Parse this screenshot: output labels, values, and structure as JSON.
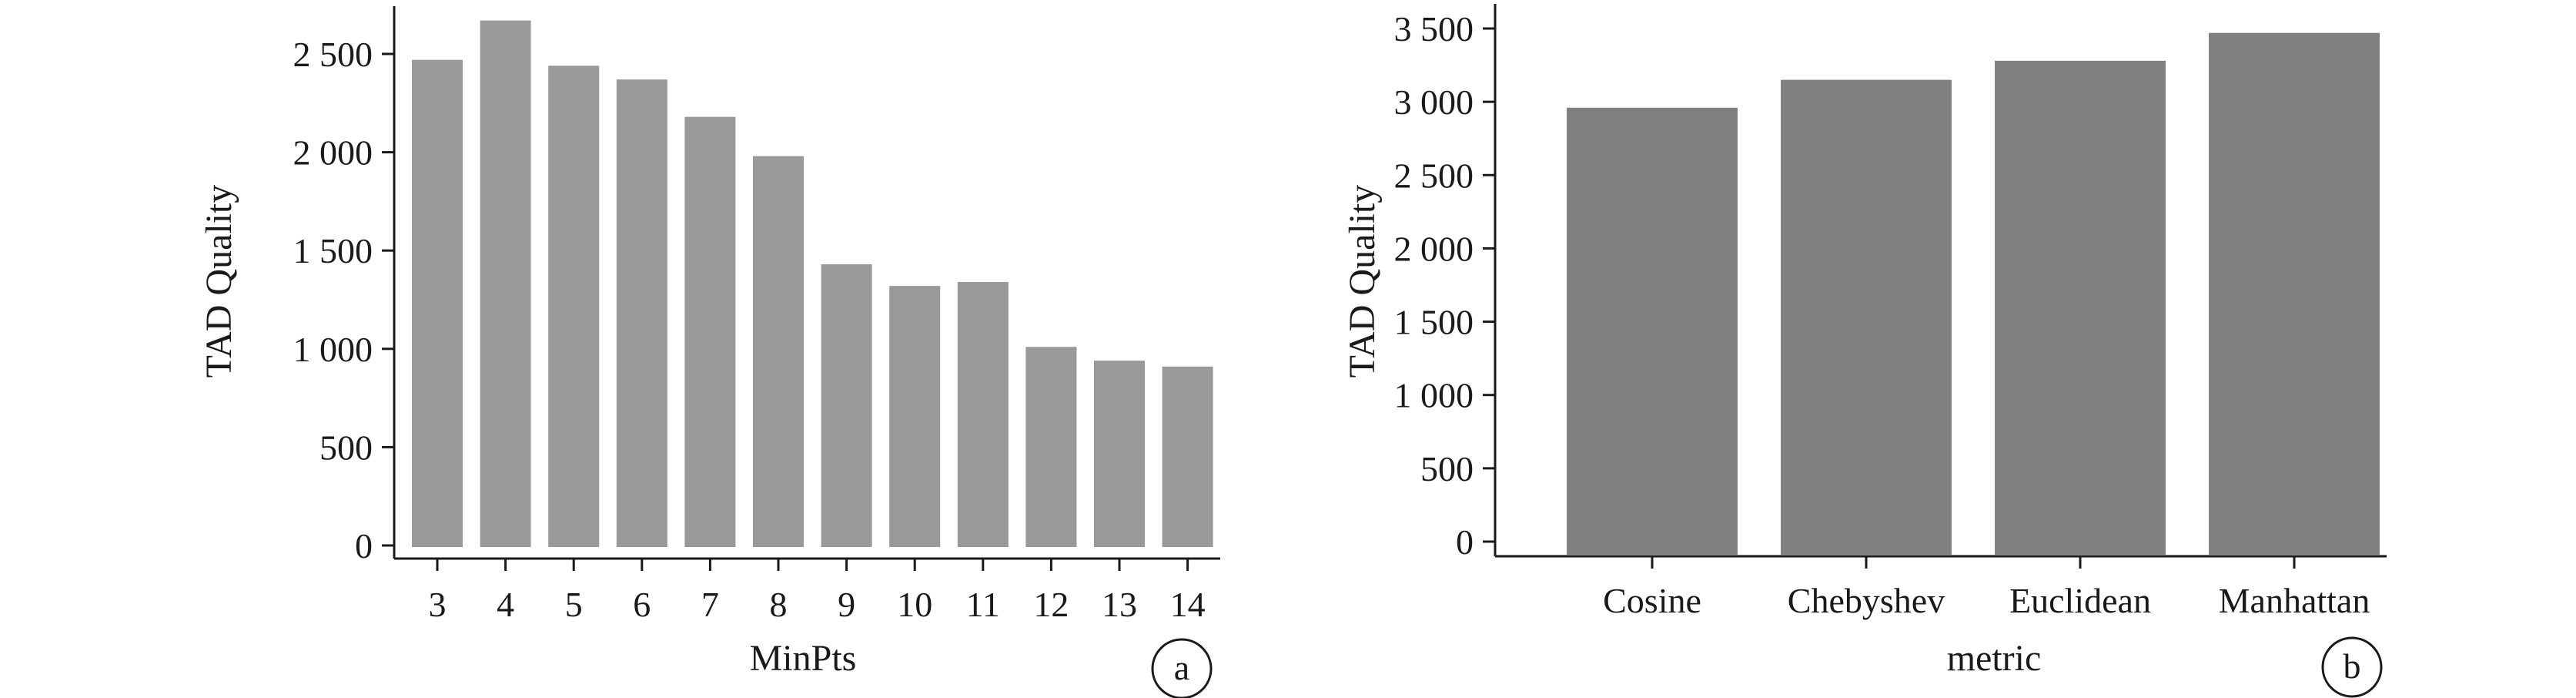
{
  "chart_data": [
    {
      "type": "bar",
      "panel_label": "a",
      "xlabel": "MinPts",
      "ylabel": "TAD Quality",
      "categories": [
        "3",
        "4",
        "5",
        "6",
        "7",
        "8",
        "9",
        "10",
        "11",
        "12",
        "13",
        "14"
      ],
      "values": [
        2470,
        2670,
        2440,
        2370,
        2180,
        1980,
        1430,
        1320,
        1340,
        1010,
        940,
        910
      ],
      "ylim": [
        0,
        2700
      ],
      "yticks": [
        0,
        500,
        1000,
        1500,
        2000,
        2500
      ],
      "ytick_labels": [
        "0",
        "500",
        "1 000",
        "1 500",
        "2 000",
        "2 500"
      ],
      "bar_color": "#999999",
      "grid": false
    },
    {
      "type": "bar",
      "panel_label": "b",
      "xlabel": "metric",
      "ylabel": "TAD Quality",
      "categories": [
        "Cosine",
        "Chebyshev",
        "Euclidean",
        "Manhattan"
      ],
      "values": [
        2960,
        3150,
        3280,
        3470
      ],
      "ylim": [
        0,
        3500
      ],
      "yticks": [
        0,
        500,
        1000,
        1500,
        2000,
        2500,
        3000,
        3500
      ],
      "ytick_labels": [
        "0",
        "500",
        "1 000",
        "1 500",
        "2 000",
        "2 500",
        "3 000",
        "3 500"
      ],
      "bar_color": "#808080",
      "grid": false
    }
  ]
}
